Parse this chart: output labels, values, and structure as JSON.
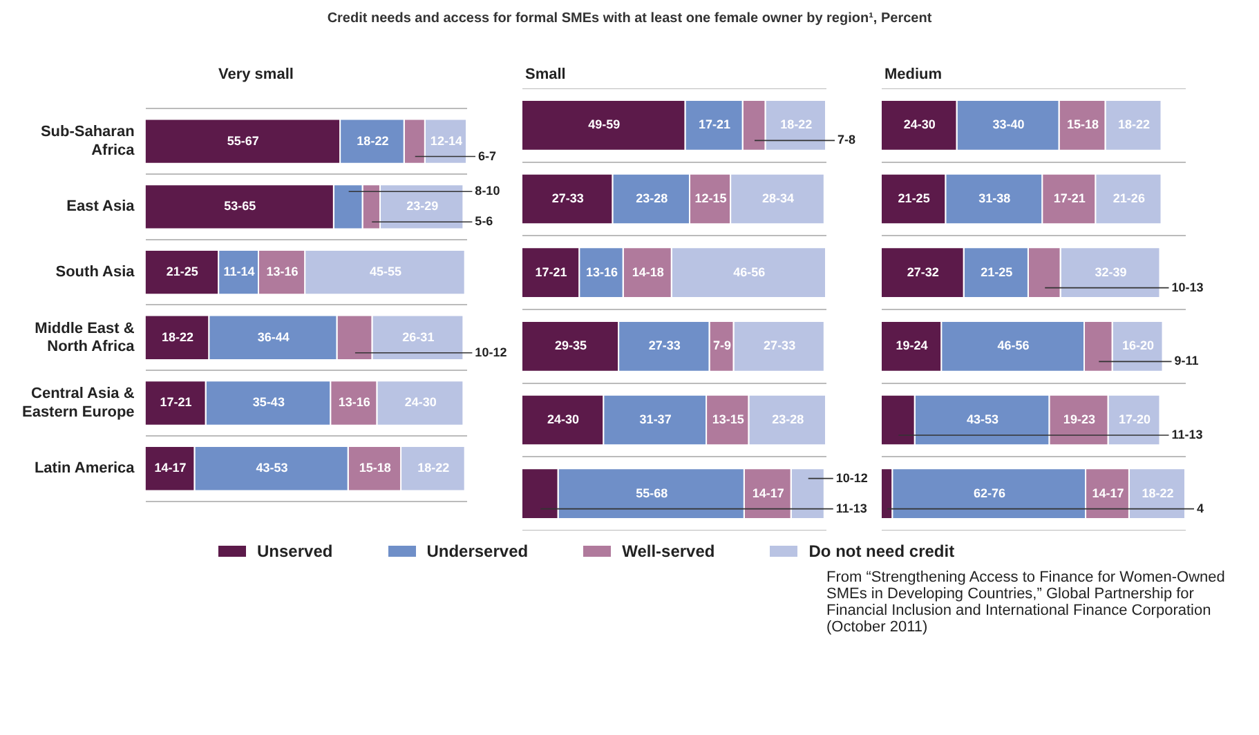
{
  "chart_data": [
    {
      "type": "bar",
      "orientation": "horizontal",
      "stacked": true,
      "title": "Credit needs and access for formal SMEs with at least one female owner by region¹, Percent",
      "subtitle": "Very small",
      "categories": [
        "Sub-Saharan Africa",
        "East Asia",
        "South Asia",
        "Middle East & North Africa",
        "Central Asia & Eastern Europe",
        "Latin America"
      ],
      "tick_labels": "y",
      "grid": "y",
      "legend": "bottom",
      "series": [
        {
          "name": "Unserved",
          "color": "#5c1a4a",
          "values": [
            61,
            59,
            23,
            20,
            19,
            15.5
          ],
          "value_labels": [
            "55-67",
            "53-65",
            "21-25",
            "18-22",
            "17-21",
            "14-17"
          ]
        },
        {
          "name": "Underserved",
          "color": "#6f8fc8",
          "values": [
            20,
            9,
            12.5,
            40,
            39,
            48
          ],
          "value_labels": [
            "18-22",
            "8-10",
            "11-14",
            "36-44",
            "35-43",
            "43-53"
          ]
        },
        {
          "name": "Well-served",
          "color": "#b07a9c",
          "values": [
            6.5,
            5.5,
            14.5,
            11,
            14.5,
            16.5
          ],
          "value_labels": [
            "6-7",
            "5-6",
            "13-16",
            "10-12",
            "13-16",
            "15-18"
          ]
        },
        {
          "name": "Do not need credit",
          "color": "#b9c3e3",
          "values": [
            13,
            26,
            50,
            28.5,
            27,
            20
          ],
          "value_labels": [
            "12-14",
            "23-29",
            "45-55",
            "26-31",
            "24-30",
            "18-22"
          ]
        }
      ]
    },
    {
      "type": "bar",
      "orientation": "horizontal",
      "stacked": true,
      "subtitle": "Small",
      "categories": [
        null,
        null,
        null,
        null,
        null,
        null
      ],
      "tick_labels": false,
      "grid": "y",
      "series": [
        {
          "color": "#5c1a4a",
          "values": [
            54,
            30,
            19,
            32,
            27,
            12
          ],
          "value_labels": [
            "49-59",
            "27-33",
            "17-21",
            "29-35",
            "24-30",
            "11-13"
          ]
        },
        {
          "color": "#6f8fc8",
          "values": [
            19,
            25.5,
            14.5,
            30,
            34,
            61.5
          ],
          "value_labels": [
            "17-21",
            "23-28",
            "13-16",
            "27-33",
            "31-37",
            "55-68"
          ]
        },
        {
          "color": "#b07a9c",
          "values": [
            7.5,
            13.5,
            16,
            8,
            14,
            15.5
          ],
          "value_labels": [
            "7-8",
            "12-15",
            "14-18",
            "7-9",
            "13-15",
            "14-17"
          ]
        },
        {
          "color": "#b9c3e3",
          "values": [
            20,
            31,
            51,
            30,
            25.5,
            11
          ],
          "value_labels": [
            "18-22",
            "28-34",
            "46-56",
            "27-33",
            "23-28",
            "10-12"
          ]
        }
      ]
    },
    {
      "type": "bar",
      "orientation": "horizontal",
      "stacked": true,
      "subtitle": "Medium",
      "categories": [
        null,
        null,
        null,
        null,
        null,
        null
      ],
      "tick_labels": false,
      "grid": "y",
      "annotations": [
        "From “Strengthening Access to Finance for Women-Owned SMEs in Developing Countries,” Global Partnership for Financial Inclusion and International Finance Corporation (October 2011)"
      ],
      "series": [
        {
          "color": "#5c1a4a",
          "values": [
            27,
            23,
            29.5,
            21.5,
            12,
            4
          ],
          "value_labels": [
            "24-30",
            "21-25",
            "27-32",
            "19-24",
            "11-13",
            "4"
          ]
        },
        {
          "color": "#6f8fc8",
          "values": [
            36.5,
            34.5,
            23,
            51,
            48,
            69
          ],
          "value_labels": [
            "33-40",
            "31-38",
            "21-25",
            "46-56",
            "43-53",
            "62-76"
          ]
        },
        {
          "color": "#b07a9c",
          "values": [
            16.5,
            19,
            11.5,
            10,
            21,
            15.5
          ],
          "value_labels": [
            "15-18",
            "17-21",
            "10-13",
            "9-11",
            "19-23",
            "14-17"
          ]
        },
        {
          "color": "#b9c3e3",
          "values": [
            20,
            23.5,
            35.5,
            18,
            18.5,
            20
          ],
          "value_labels": [
            "18-22",
            "21-26",
            "32-39",
            "16-20",
            "17-20",
            "18-22"
          ]
        }
      ]
    }
  ]
}
